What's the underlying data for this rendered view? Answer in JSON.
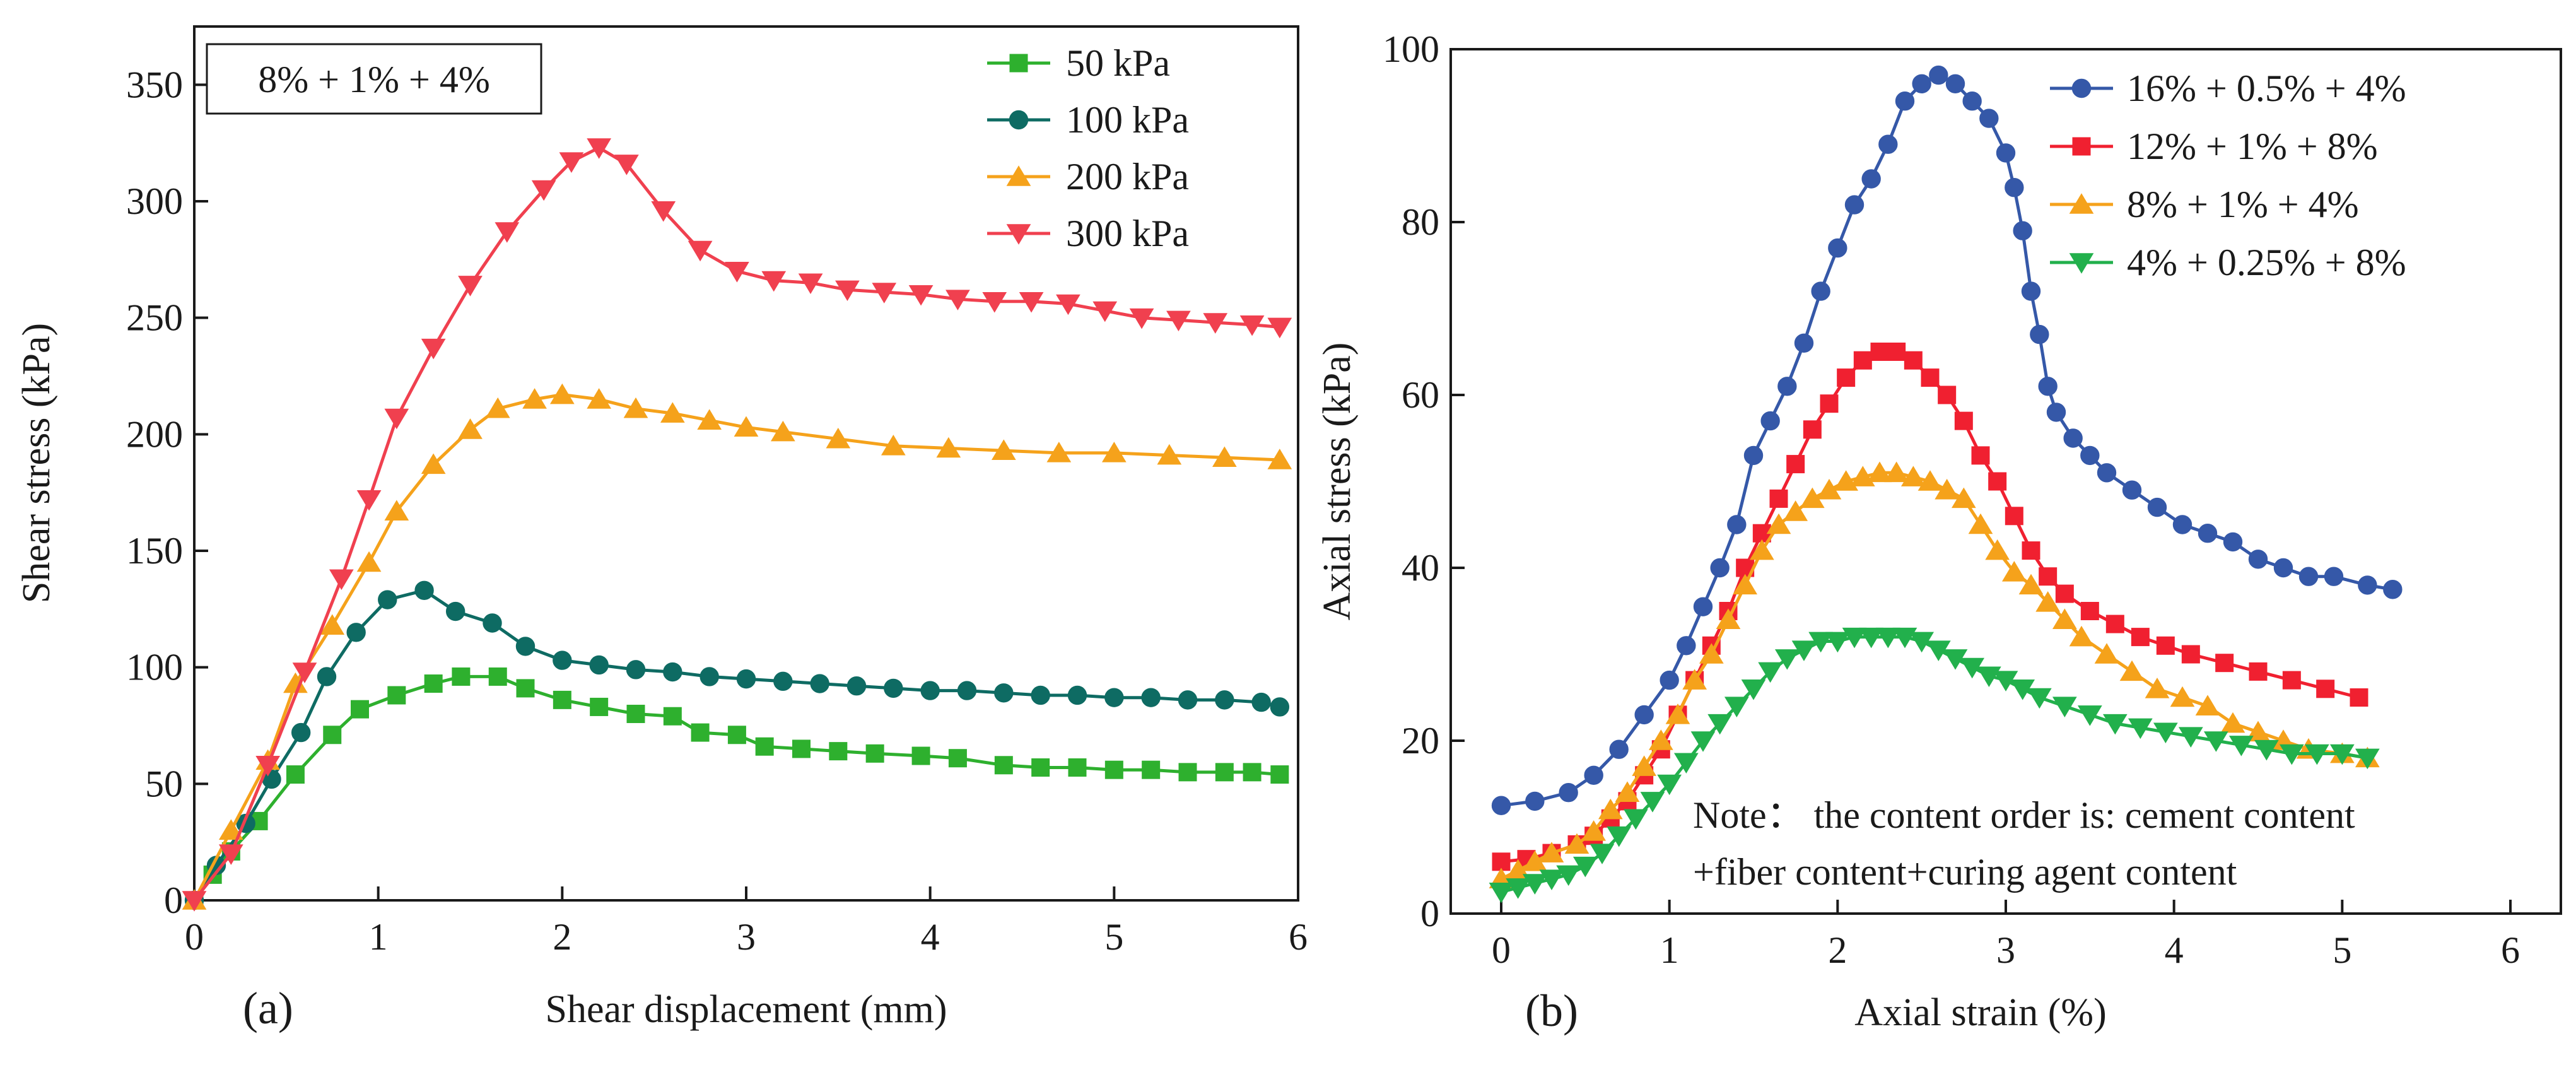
{
  "chart_data": [
    {
      "id": "a",
      "type": "line",
      "panel_label": "(a)",
      "xlabel": "Shear displacement (mm)",
      "ylabel": "Shear stress (kPa)",
      "xlim": [
        0,
        6
      ],
      "ylim": [
        0,
        375
      ],
      "xticks": [
        0,
        1,
        2,
        3,
        4,
        5,
        6
      ],
      "yticks": [
        0,
        50,
        100,
        150,
        200,
        250,
        300,
        350
      ],
      "grid": false,
      "legend_position": "top-right",
      "annotation": "8% + 1% + 4%",
      "series": [
        {
          "name": "50 kPa",
          "color": "#2eb02e",
          "marker": "square",
          "x": [
            0,
            0.1,
            0.2,
            0.35,
            0.55,
            0.75,
            0.9,
            1.1,
            1.3,
            1.45,
            1.65,
            1.8,
            2.0,
            2.2,
            2.4,
            2.6,
            2.75,
            2.95,
            3.1,
            3.3,
            3.5,
            3.7,
            3.95,
            4.15,
            4.4,
            4.6,
            4.8,
            5.0,
            5.2,
            5.4,
            5.6,
            5.75,
            5.9
          ],
          "y": [
            0,
            11,
            21,
            34,
            54,
            71,
            82,
            88,
            93,
            96,
            96,
            91,
            86,
            83,
            80,
            79,
            72,
            71,
            66,
            65,
            64,
            63,
            62,
            61,
            58,
            57,
            57,
            56,
            56,
            55,
            55,
            55,
            54
          ]
        },
        {
          "name": "100 kPa",
          "color": "#0e6b63",
          "marker": "circle",
          "x": [
            0,
            0.12,
            0.28,
            0.42,
            0.58,
            0.72,
            0.88,
            1.05,
            1.25,
            1.42,
            1.62,
            1.8,
            2.0,
            2.2,
            2.4,
            2.6,
            2.8,
            3.0,
            3.2,
            3.4,
            3.6,
            3.8,
            4.0,
            4.2,
            4.4,
            4.6,
            4.8,
            5.0,
            5.2,
            5.4,
            5.6,
            5.8,
            5.9
          ],
          "y": [
            0,
            15,
            33,
            52,
            72,
            96,
            115,
            129,
            133,
            124,
            119,
            109,
            103,
            101,
            99,
            98,
            96,
            95,
            94,
            93,
            92,
            91,
            90,
            90,
            89,
            88,
            88,
            87,
            87,
            86,
            86,
            85,
            83
          ]
        },
        {
          "name": "200 kPa",
          "color": "#f5a21b",
          "marker": "triangle-up",
          "x": [
            0,
            0.2,
            0.4,
            0.55,
            0.75,
            0.95,
            1.1,
            1.3,
            1.5,
            1.65,
            1.85,
            2.0,
            2.2,
            2.4,
            2.6,
            2.8,
            3.0,
            3.2,
            3.5,
            3.8,
            4.1,
            4.4,
            4.7,
            5.0,
            5.3,
            5.6,
            5.9
          ],
          "y": [
            0,
            30,
            60,
            93,
            118,
            145,
            167,
            187,
            202,
            211,
            215,
            217,
            215,
            211,
            209,
            206,
            203,
            201,
            198,
            195,
            194,
            193,
            192,
            192,
            191,
            190,
            189
          ]
        },
        {
          "name": "300 kPa",
          "color": "#f0404f",
          "marker": "triangle-down",
          "x": [
            0,
            0.2,
            0.4,
            0.6,
            0.8,
            0.95,
            1.1,
            1.3,
            1.5,
            1.7,
            1.9,
            2.05,
            2.2,
            2.35,
            2.55,
            2.75,
            2.95,
            3.15,
            3.35,
            3.55,
            3.75,
            3.95,
            4.15,
            4.35,
            4.55,
            4.75,
            4.95,
            5.15,
            5.35,
            5.55,
            5.75,
            5.9
          ],
          "y": [
            0,
            20,
            58,
            98,
            138,
            172,
            207,
            237,
            264,
            287,
            305,
            317,
            323,
            316,
            296,
            279,
            270,
            266,
            265,
            262,
            261,
            260,
            258,
            257,
            257,
            256,
            253,
            250,
            249,
            248,
            247,
            246
          ]
        }
      ]
    },
    {
      "id": "b",
      "type": "line",
      "panel_label": "(b)",
      "xlabel": "Axial strain (%)",
      "ylabel": "Axial stress (kPa)",
      "xlim": [
        -0.3,
        6.3
      ],
      "ylim": [
        0,
        100
      ],
      "xticks": [
        0,
        1,
        2,
        3,
        4,
        5,
        6
      ],
      "yticks": [
        0,
        20,
        40,
        60,
        80,
        100
      ],
      "grid": false,
      "legend_position": "top-right",
      "note_lines": [
        "Note： the content order is: cement content",
        "+fiber content+curing agent content"
      ],
      "series": [
        {
          "name": "16% + 0.5% + 4%",
          "color": "#3558a8",
          "marker": "circle",
          "x": [
            0,
            0.2,
            0.4,
            0.55,
            0.7,
            0.85,
            1.0,
            1.1,
            1.2,
            1.3,
            1.4,
            1.5,
            1.6,
            1.7,
            1.8,
            1.9,
            2.0,
            2.1,
            2.2,
            2.3,
            2.4,
            2.5,
            2.6,
            2.7,
            2.8,
            2.9,
            3.0,
            3.05,
            3.1,
            3.15,
            3.2,
            3.25,
            3.3,
            3.4,
            3.5,
            3.6,
            3.75,
            3.9,
            4.05,
            4.2,
            4.35,
            4.5,
            4.65,
            4.8,
            4.95,
            5.15,
            5.3
          ],
          "y": [
            12.5,
            13,
            14,
            16,
            19,
            23,
            27,
            31,
            35.5,
            40,
            45,
            53,
            57,
            61,
            66,
            72,
            77,
            82,
            85,
            89,
            94,
            96,
            97,
            96,
            94,
            92,
            88,
            84,
            79,
            72,
            67,
            61,
            58,
            55,
            53,
            51,
            49,
            47,
            45,
            44,
            43,
            41,
            40,
            39,
            39,
            38,
            37.5
          ]
        },
        {
          "name": "12% + 1% + 8%",
          "color": "#f02030",
          "marker": "square",
          "x": [
            0,
            0.15,
            0.3,
            0.45,
            0.55,
            0.65,
            0.75,
            0.85,
            0.95,
            1.05,
            1.15,
            1.25,
            1.35,
            1.45,
            1.55,
            1.65,
            1.75,
            1.85,
            1.95,
            2.05,
            2.15,
            2.25,
            2.35,
            2.45,
            2.55,
            2.65,
            2.75,
            2.85,
            2.95,
            3.05,
            3.15,
            3.25,
            3.35,
            3.5,
            3.65,
            3.8,
            3.95,
            4.1,
            4.3,
            4.5,
            4.7,
            4.9,
            5.1
          ],
          "y": [
            6,
            6.3,
            7,
            8,
            9,
            11,
            13,
            16,
            19,
            23,
            27,
            31,
            35,
            40,
            44,
            48,
            52,
            56,
            59,
            62,
            64,
            65,
            65,
            64,
            62,
            60,
            57,
            53,
            50,
            46,
            42,
            39,
            37,
            35,
            33.5,
            32,
            31,
            30,
            29,
            28,
            27,
            26,
            25
          ]
        },
        {
          "name": "8% + 1% + 4%",
          "color": "#f5a21b",
          "marker": "triangle-up",
          "x": [
            0,
            0.1,
            0.2,
            0.3,
            0.45,
            0.55,
            0.65,
            0.75,
            0.85,
            0.95,
            1.05,
            1.15,
            1.25,
            1.35,
            1.45,
            1.55,
            1.65,
            1.75,
            1.85,
            1.95,
            2.05,
            2.15,
            2.25,
            2.35,
            2.45,
            2.55,
            2.65,
            2.75,
            2.85,
            2.95,
            3.05,
            3.15,
            3.25,
            3.35,
            3.45,
            3.6,
            3.75,
            3.9,
            4.05,
            4.2,
            4.35,
            4.5,
            4.65,
            4.8,
            5.0,
            5.15
          ],
          "y": [
            4,
            5,
            6,
            7,
            8,
            9.5,
            12,
            14,
            17,
            20,
            23,
            27,
            30,
            34,
            38,
            42,
            45,
            46.5,
            48,
            49,
            50,
            50.5,
            51,
            51,
            50.5,
            50,
            49,
            48,
            45,
            42,
            39.5,
            38,
            36,
            34,
            32,
            30,
            28,
            26,
            25,
            24,
            22,
            21,
            20,
            19,
            18.5,
            18
          ]
        },
        {
          "name": "4% + 0.25% + 8%",
          "color": "#22b04c",
          "marker": "triangle-down",
          "x": [
            0,
            0.1,
            0.2,
            0.3,
            0.4,
            0.5,
            0.6,
            0.7,
            0.8,
            0.9,
            1.0,
            1.1,
            1.2,
            1.3,
            1.4,
            1.5,
            1.6,
            1.7,
            1.8,
            1.9,
            2.0,
            2.1,
            2.2,
            2.3,
            2.4,
            2.5,
            2.6,
            2.7,
            2.8,
            2.9,
            3.0,
            3.1,
            3.2,
            3.35,
            3.5,
            3.65,
            3.8,
            3.95,
            4.1,
            4.25,
            4.4,
            4.55,
            4.7,
            4.85,
            5.0,
            5.15
          ],
          "y": [
            2.5,
            3,
            3.5,
            4,
            4.5,
            5.5,
            7,
            9,
            11,
            13,
            15,
            17.5,
            20,
            22,
            24,
            26,
            28,
            29.5,
            30.5,
            31.5,
            31.5,
            32,
            32,
            32,
            32,
            31.5,
            30.5,
            29.5,
            28.5,
            27.5,
            27,
            26,
            25,
            24,
            23,
            22,
            21.5,
            21,
            20.5,
            20,
            19.5,
            19,
            18.5,
            18.5,
            18.5,
            18
          ]
        }
      ]
    }
  ]
}
